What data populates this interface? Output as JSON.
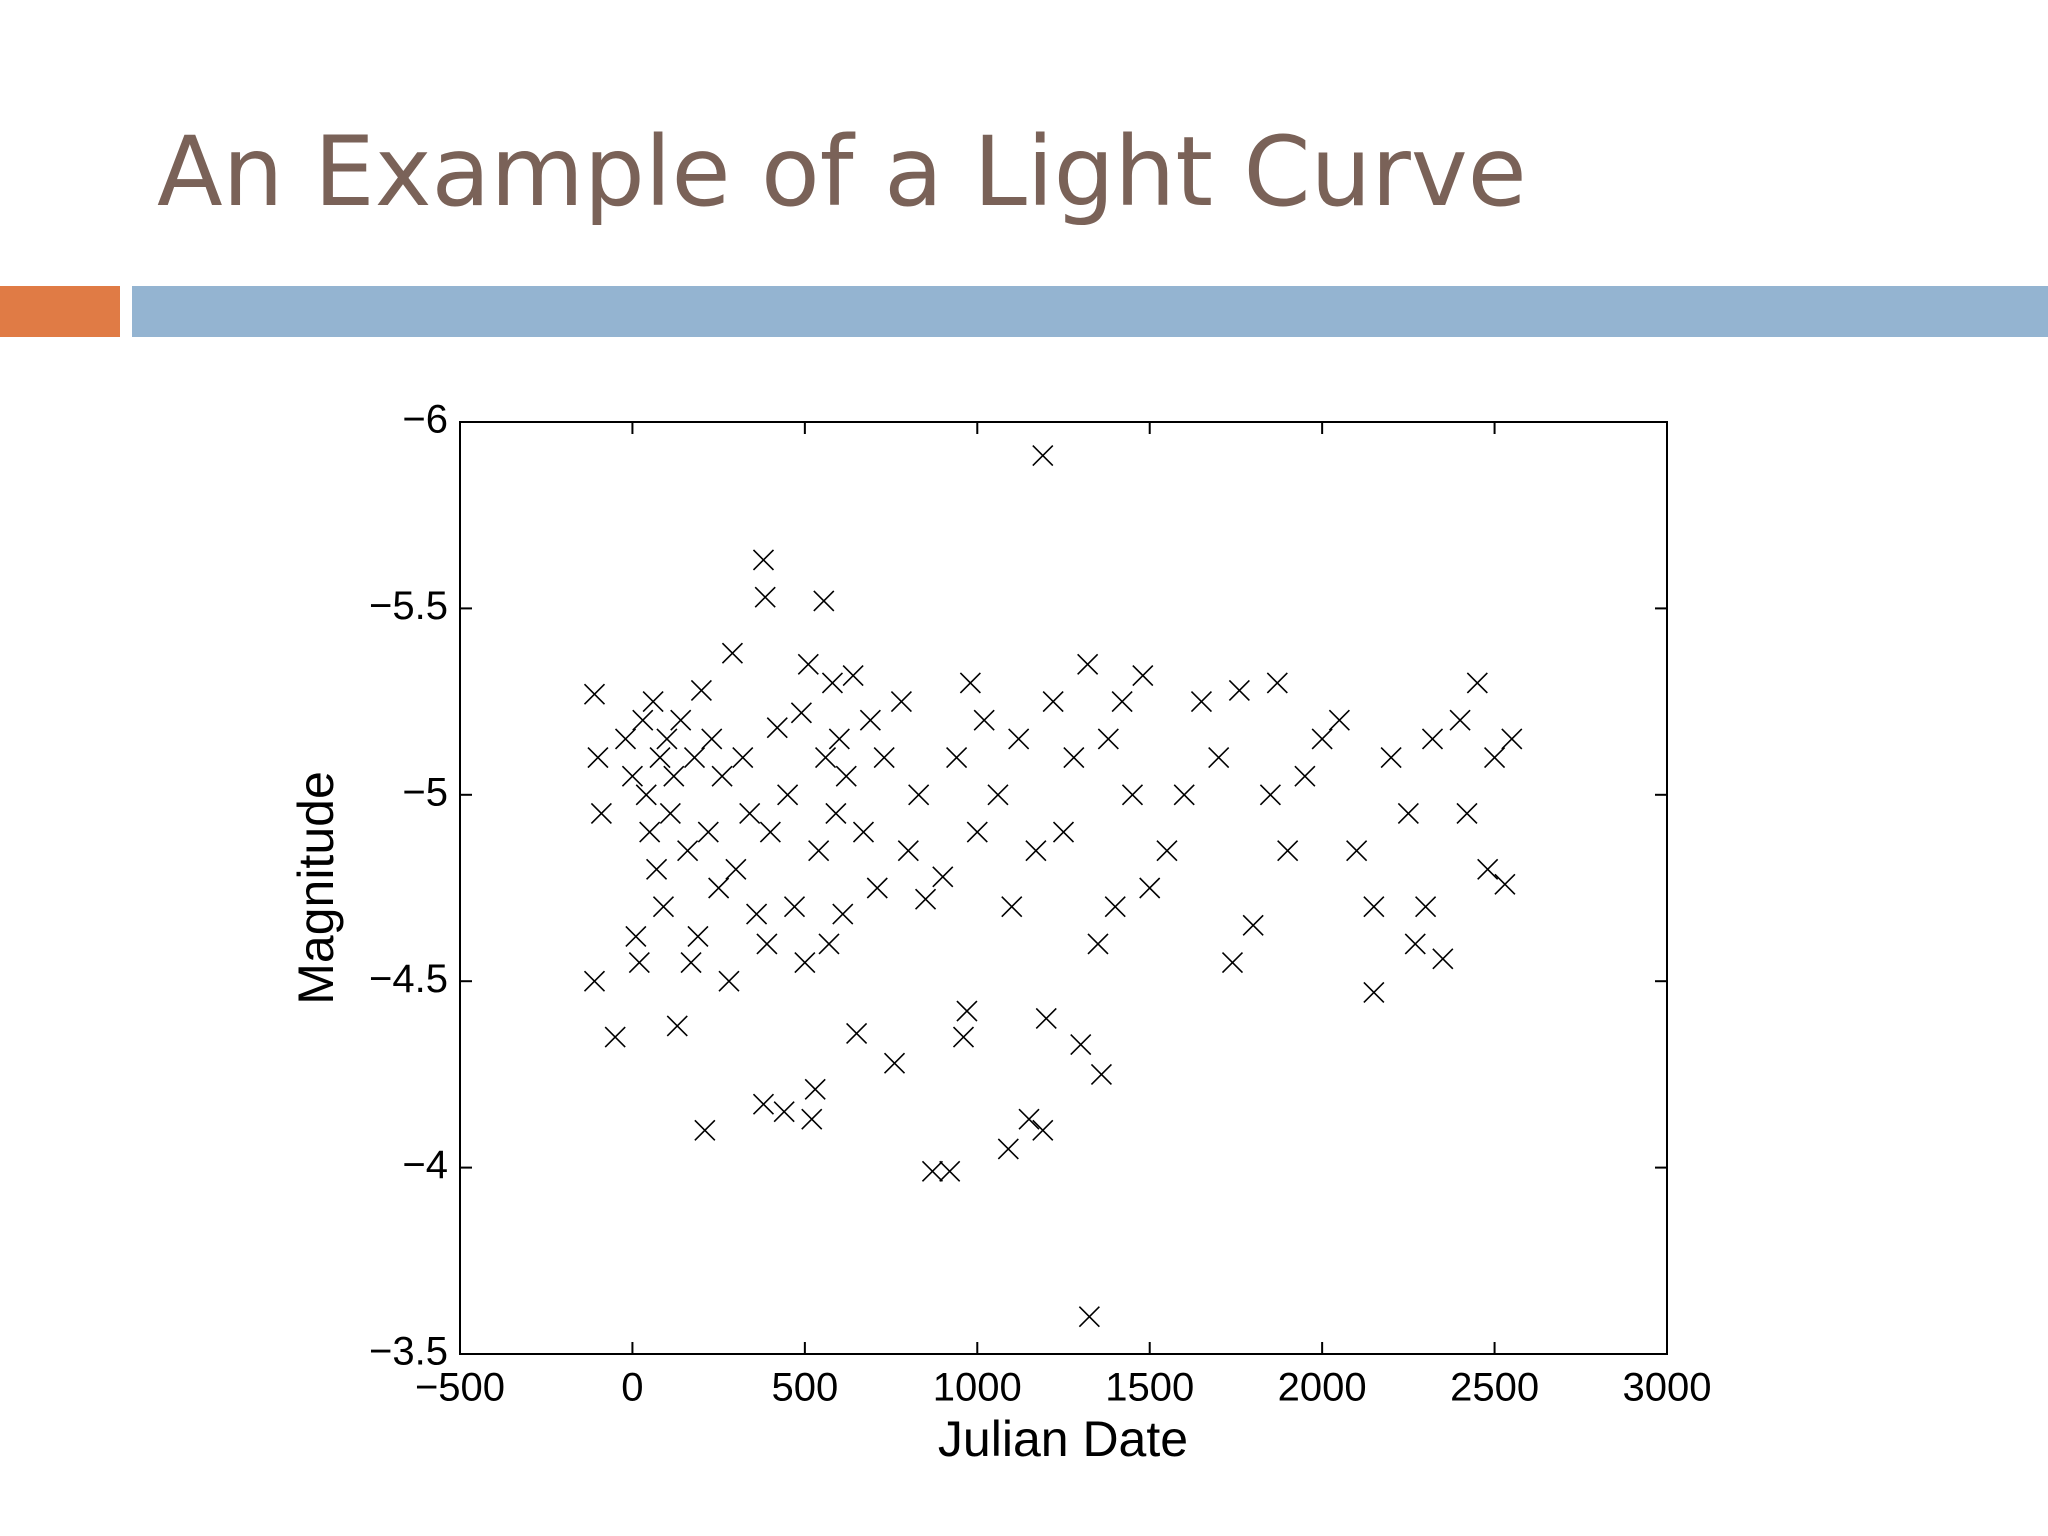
{
  "slide": {
    "title": "An Example of a Light Curve"
  },
  "chart_data": {
    "type": "scatter",
    "color": "#000000",
    "marker": "x",
    "y_inverted": true,
    "xlabel": "Julian Date",
    "ylabel": "Magnitude",
    "xlim": [
      -500,
      3000
    ],
    "xticks": [
      {
        "value": -500,
        "label": "−500"
      },
      0,
      500,
      1000,
      1500,
      2000,
      2500,
      3000
    ],
    "ylim": [
      -6,
      -3.5
    ],
    "yticks": [
      {
        "value": -6,
        "label": "−6"
      },
      {
        "value": -5.5,
        "label": "−5.5"
      },
      {
        "value": -5,
        "label": "−5"
      },
      {
        "value": -4.5,
        "label": "−4.5"
      },
      {
        "value": -4,
        "label": "−4"
      },
      {
        "value": -3.5,
        "label": "−3.5"
      }
    ],
    "x": [
      -110,
      -100,
      -90,
      -110,
      -50,
      -20,
      0,
      10,
      20,
      30,
      40,
      50,
      60,
      70,
      80,
      90,
      100,
      110,
      120,
      130,
      140,
      160,
      170,
      180,
      190,
      200,
      210,
      220,
      230,
      250,
      260,
      280,
      290,
      300,
      320,
      340,
      360,
      380,
      385,
      380,
      390,
      400,
      420,
      440,
      450,
      470,
      490,
      500,
      510,
      520,
      530,
      540,
      555,
      560,
      570,
      580,
      590,
      600,
      610,
      620,
      640,
      650,
      670,
      690,
      710,
      730,
      760,
      780,
      800,
      830,
      850,
      870,
      900,
      920,
      940,
      960,
      970,
      980,
      1000,
      1020,
      1060,
      1090,
      1100,
      1120,
      1150,
      1170,
      1190,
      1190,
      1200,
      1220,
      1250,
      1280,
      1300,
      1320,
      1325,
      1350,
      1360,
      1380,
      1400,
      1420,
      1450,
      1480,
      1500,
      1550,
      1600,
      1650,
      1700,
      1740,
      1760,
      1800,
      1850,
      1870,
      1900,
      1950,
      2000,
      2050,
      2100,
      2150,
      2150,
      2200,
      2250,
      2270,
      2300,
      2320,
      2350,
      2400,
      2420,
      2450,
      2480,
      2500,
      2530,
      2550
    ],
    "values": [
      -5.27,
      -5.1,
      -4.95,
      -4.5,
      -4.35,
      -5.15,
      -5.05,
      -4.62,
      -4.55,
      -5.2,
      -5.0,
      -4.9,
      -5.25,
      -4.8,
      -5.1,
      -4.7,
      -5.15,
      -4.95,
      -5.05,
      -4.38,
      -5.2,
      -4.85,
      -4.55,
      -5.1,
      -4.62,
      -5.28,
      -4.1,
      -4.9,
      -5.15,
      -4.75,
      -5.05,
      -4.5,
      -5.38,
      -4.8,
      -5.1,
      -4.95,
      -4.68,
      -5.63,
      -5.53,
      -4.17,
      -4.6,
      -4.9,
      -5.18,
      -4.15,
      -5.0,
      -4.7,
      -5.22,
      -4.55,
      -5.35,
      -4.13,
      -4.21,
      -4.85,
      -5.52,
      -5.1,
      -4.6,
      -5.3,
      -4.95,
      -5.15,
      -4.68,
      -5.05,
      -5.32,
      -4.36,
      -4.9,
      -5.2,
      -4.75,
      -5.1,
      -4.28,
      -5.25,
      -4.85,
      -5.0,
      -4.72,
      -3.99,
      -4.78,
      -3.99,
      -5.1,
      -4.35,
      -4.42,
      -5.3,
      -4.9,
      -5.2,
      -5.0,
      -4.05,
      -4.7,
      -5.15,
      -4.13,
      -4.85,
      -5.91,
      -4.1,
      -4.4,
      -5.25,
      -4.9,
      -5.1,
      -4.33,
      -5.35,
      -3.6,
      -4.6,
      -4.25,
      -5.15,
      -4.7,
      -5.25,
      -5.0,
      -5.32,
      -4.75,
      -4.85,
      -5.0,
      -5.25,
      -5.1,
      -4.55,
      -5.28,
      -4.65,
      -5.0,
      -5.3,
      -4.85,
      -5.05,
      -5.15,
      -5.2,
      -4.85,
      -4.47,
      -4.7,
      -5.1,
      -4.95,
      -4.6,
      -4.7,
      -5.15,
      -4.56,
      -5.2,
      -4.95,
      -5.3,
      -4.8,
      -5.1,
      -4.76,
      -5.15
    ]
  }
}
